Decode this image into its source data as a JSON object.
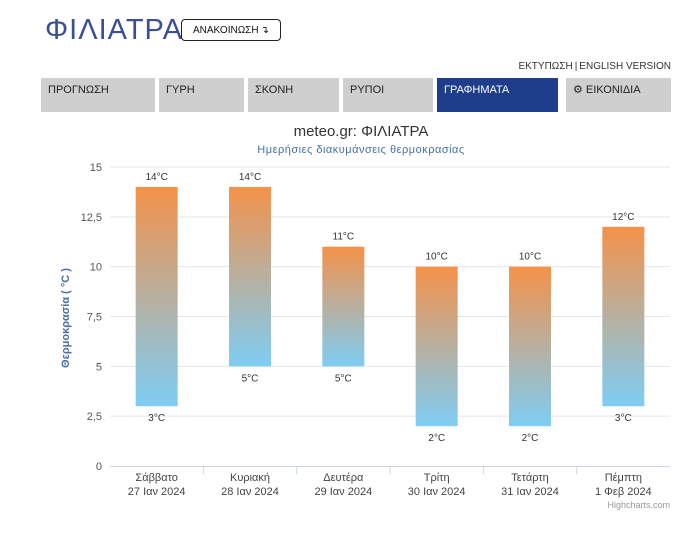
{
  "header": {
    "city": "ΦΙΛΙΑΤΡΑ",
    "announce_label": "ΑΝΑΚΟΙΝΩΣΗ",
    "links": [
      "ΕΚΤΥΠΩΣΗ",
      "ENGLISH VERSION"
    ],
    "links_separator": "|"
  },
  "tabs": [
    {
      "label": "ΠΡΟΓΝΩΣΗ",
      "active": false,
      "icon": ""
    },
    {
      "label": "ΓΥΡΗ",
      "active": false,
      "icon": ""
    },
    {
      "label": "ΣΚΟΝΗ",
      "active": false,
      "icon": ""
    },
    {
      "label": "ΡΥΠΟΙ",
      "active": false,
      "icon": ""
    },
    {
      "label": "ΓΡΑΦΗΜΑΤΑ",
      "active": true,
      "icon": ""
    },
    {
      "label": "ΕΙΚΟΝΙΔΙΑ",
      "active": false,
      "icon": "gear-icon"
    }
  ],
  "colors": {
    "accent": "#1e3d8b",
    "tab_bg": "#cfcfcf",
    "bar_top": "#f4924a",
    "bar_bottom": "#7ecdf4",
    "title": "#3b4f93"
  },
  "chart_data": {
    "type": "bar",
    "subtype": "columnrange",
    "title": "meteo.gr: ΦΙΛΙΑΤΡΑ",
    "subtitle": "Ημερήσιες διακυμάνσεις θερμοκρασίας",
    "ylabel": "Θερμοκρασία ( °C )",
    "ylim": [
      0,
      15
    ],
    "yticks": [
      "0",
      "2,5",
      "5",
      "7,5",
      "10",
      "12,5",
      "15"
    ],
    "ytick_values": [
      0,
      2.5,
      5,
      7.5,
      10,
      12.5,
      15
    ],
    "grid": true,
    "categories": [
      {
        "day": "Σάββατο",
        "date": "27 Ιαν 2024"
      },
      {
        "day": "Κυριακή",
        "date": "28 Ιαν 2024"
      },
      {
        "day": "Δευτέρα",
        "date": "29 Ιαν 2024"
      },
      {
        "day": "Τρίτη",
        "date": "30 Ιαν 2024"
      },
      {
        "day": "Τετάρτη",
        "date": "31 Ιαν 2024"
      },
      {
        "day": "Πέμπτη",
        "date": "1 Φεβ 2024"
      }
    ],
    "low": [
      3,
      5,
      5,
      2,
      2,
      3
    ],
    "high": [
      14,
      14,
      11,
      10,
      10,
      12
    ],
    "unit": "°C",
    "credits": "Highcharts.com"
  }
}
